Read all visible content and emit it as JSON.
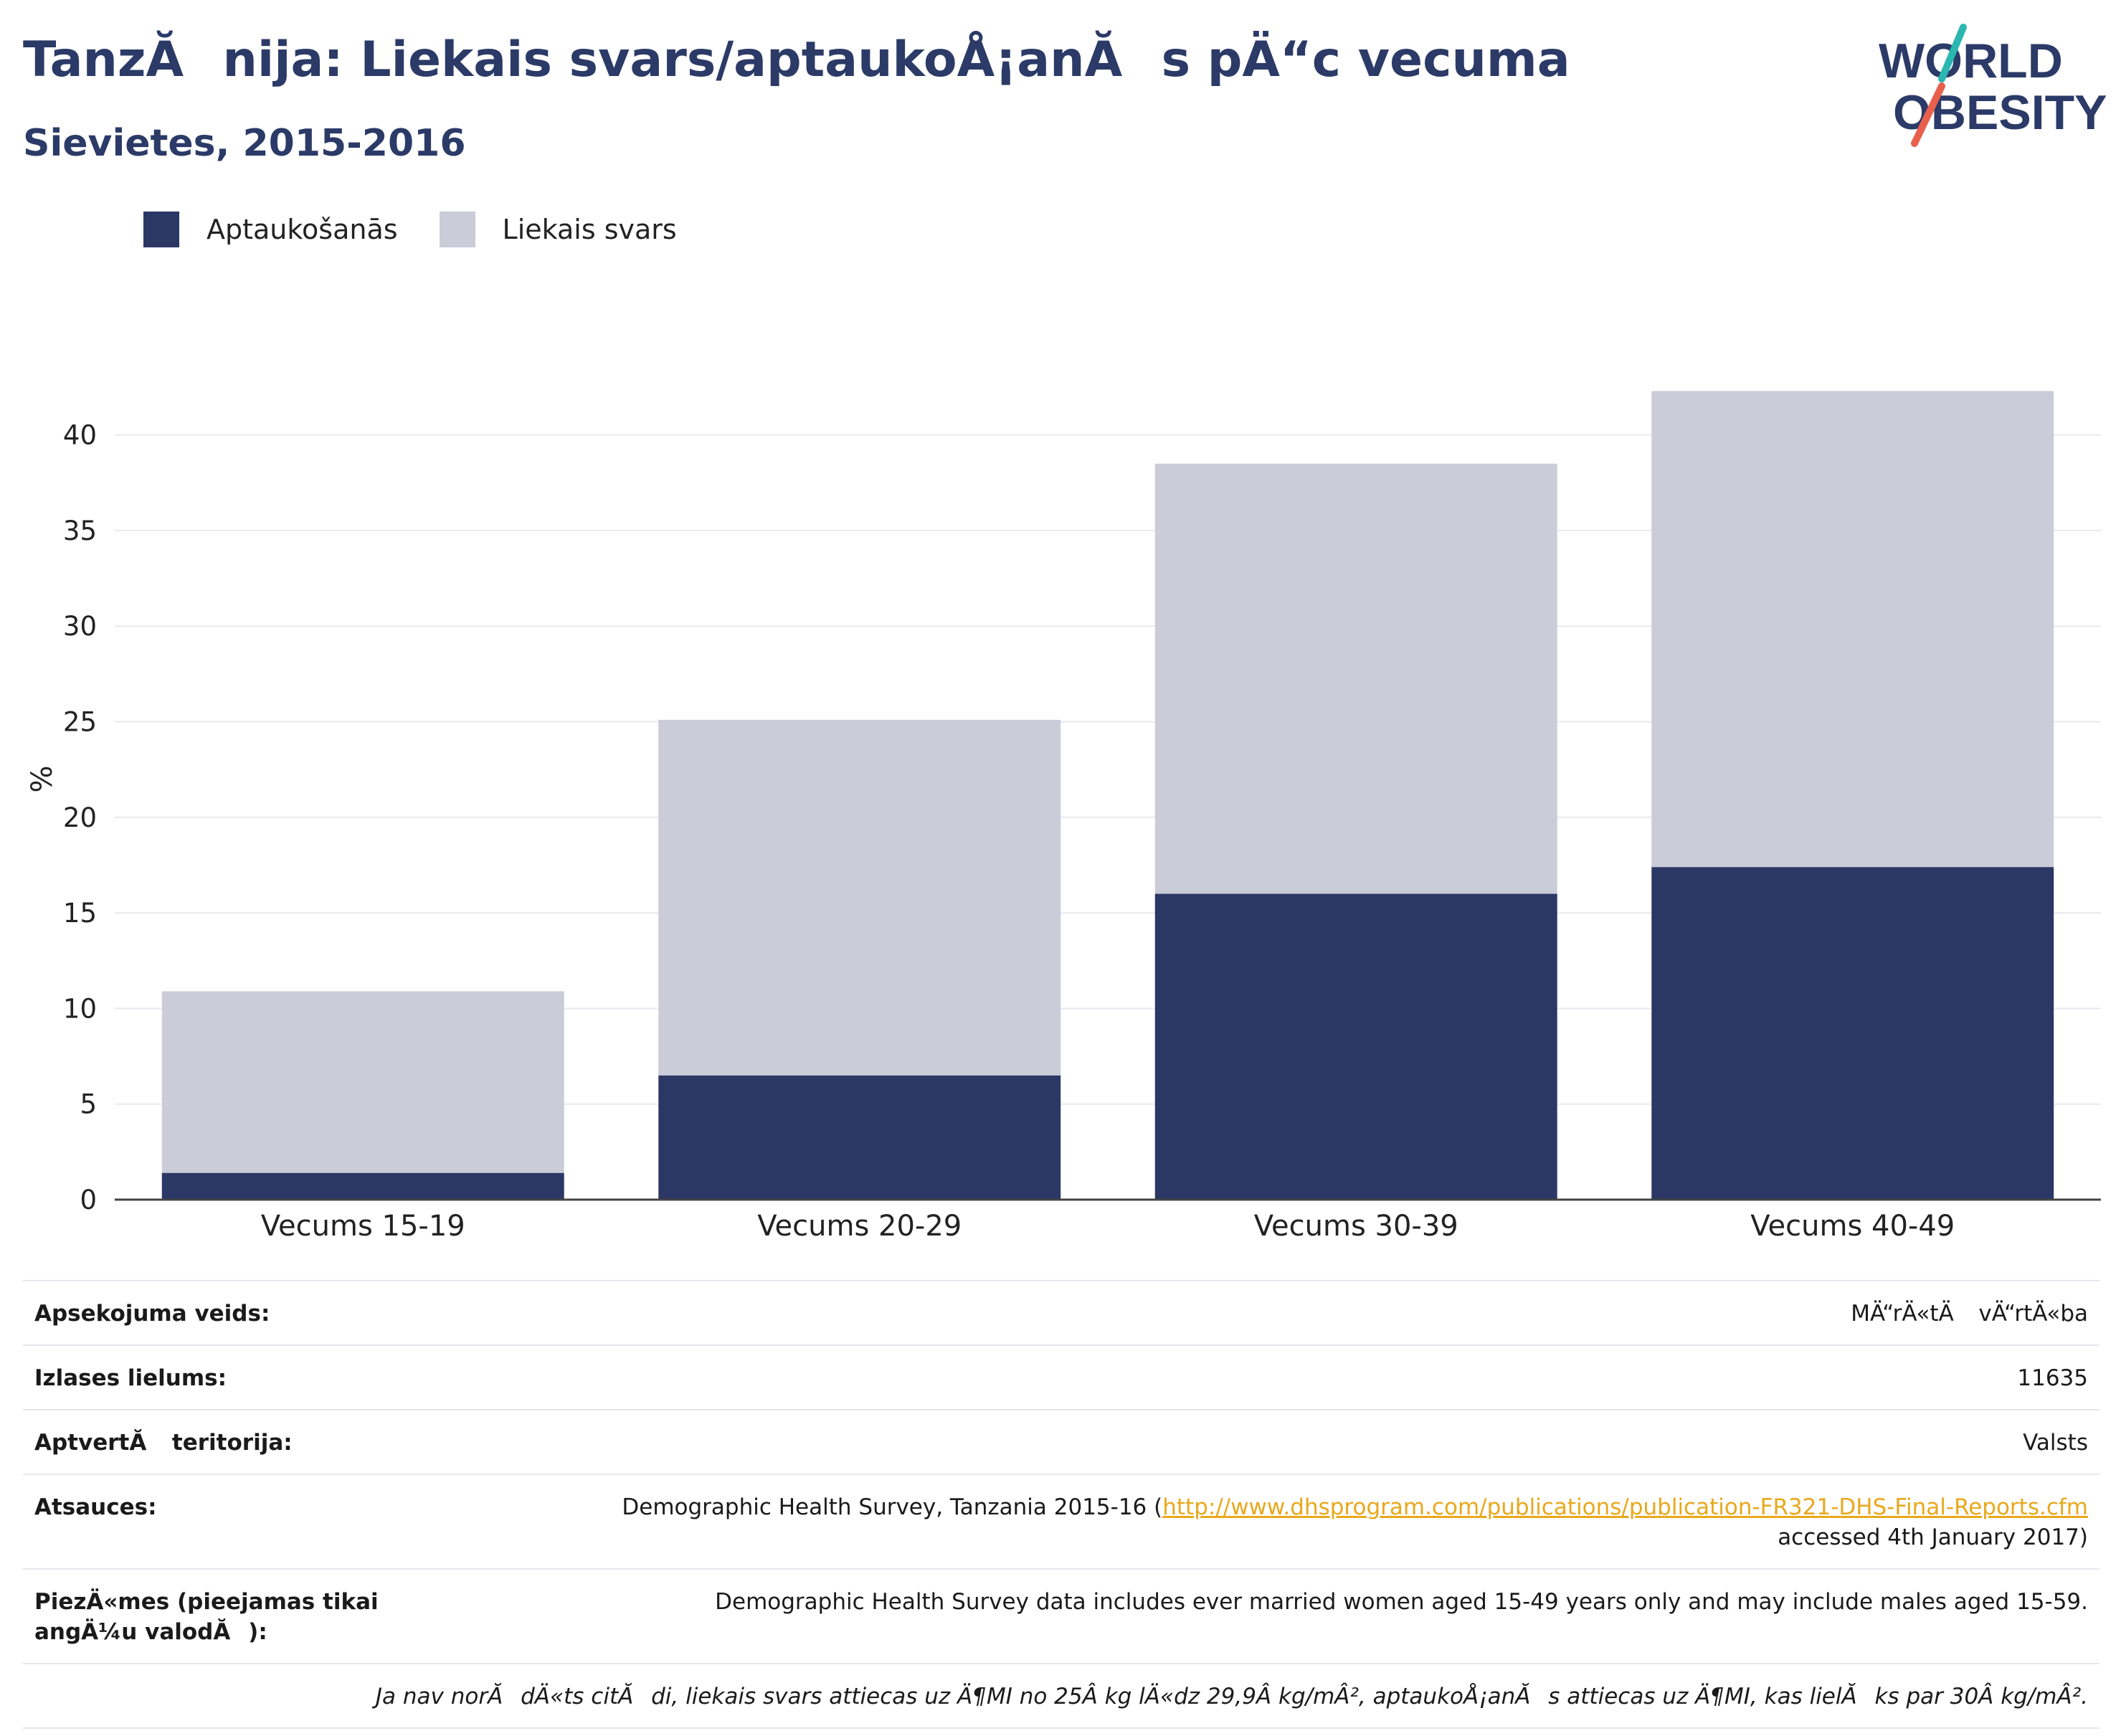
{
  "title": "TanzĂnija: Liekais svars/aptaukoÅ¡anĂs pÄ“c vecuma",
  "subtitle": "Sievietes, 2015-2016",
  "logo": {
    "line1": "WORLD",
    "line2": "OBESITY",
    "accent_teal": "#2ab7b0",
    "accent_red": "#e8604c"
  },
  "colors": {
    "obesity": "#2b3765",
    "overweight": "#caccd8",
    "text_dark": "#2b3a67",
    "link": "#e9a81c"
  },
  "chart_data": {
    "type": "bar",
    "stacked": true,
    "categories": [
      "Vecums 15-19",
      "Vecums 20-29",
      "Vecums 30-39",
      "Vecums 40-49"
    ],
    "series": [
      {
        "name": "Aptaukošanās",
        "values": [
          1.4,
          6.5,
          16.0,
          17.4
        ]
      },
      {
        "name": "Liekais svars",
        "values": [
          9.5,
          18.6,
          22.5,
          24.9
        ]
      }
    ],
    "ylabel": "%",
    "yticks": [
      0,
      5,
      10,
      15,
      20,
      25,
      30,
      35,
      40
    ],
    "ylim": [
      0,
      44
    ],
    "grid": true,
    "legend": "top-left"
  },
  "info": [
    {
      "label": "Apsekojuma veids:",
      "value": "MÄ“rÄ«tÄ vÄ“rtÄ«ba"
    },
    {
      "label": "Izlases lielums:",
      "value": "11635"
    },
    {
      "label": "AptvertĂ teritorija:",
      "value": "Valsts"
    },
    {
      "label": "Atsauces:",
      "value_pre": "Demographic Health Survey, Tanzania 2015-16 (",
      "link": "http://www.dhsprogram.com/publications/publication-FR321-DHS-Final-Reports.cfm",
      "value_post": "accessed 4th January 2017)"
    },
    {
      "label": "PiezÄ«mes (pieejamas tikai angÄ¼u valodĂ):",
      "value": "Demographic Health Survey data includes ever married women aged 15-49 years only and may include males aged 15-59."
    }
  ],
  "footnote": "Ja nav norĂdÄ«ts citĂdi, liekais svars attiecas uz Ä¶MI no 25Â kg lÄ«dz 29,9Â kg/mÂ², aptaukoÅ¡anĂs attiecas uz Ä¶MI, kas lielĂks par 30Â kg/mÂ²."
}
